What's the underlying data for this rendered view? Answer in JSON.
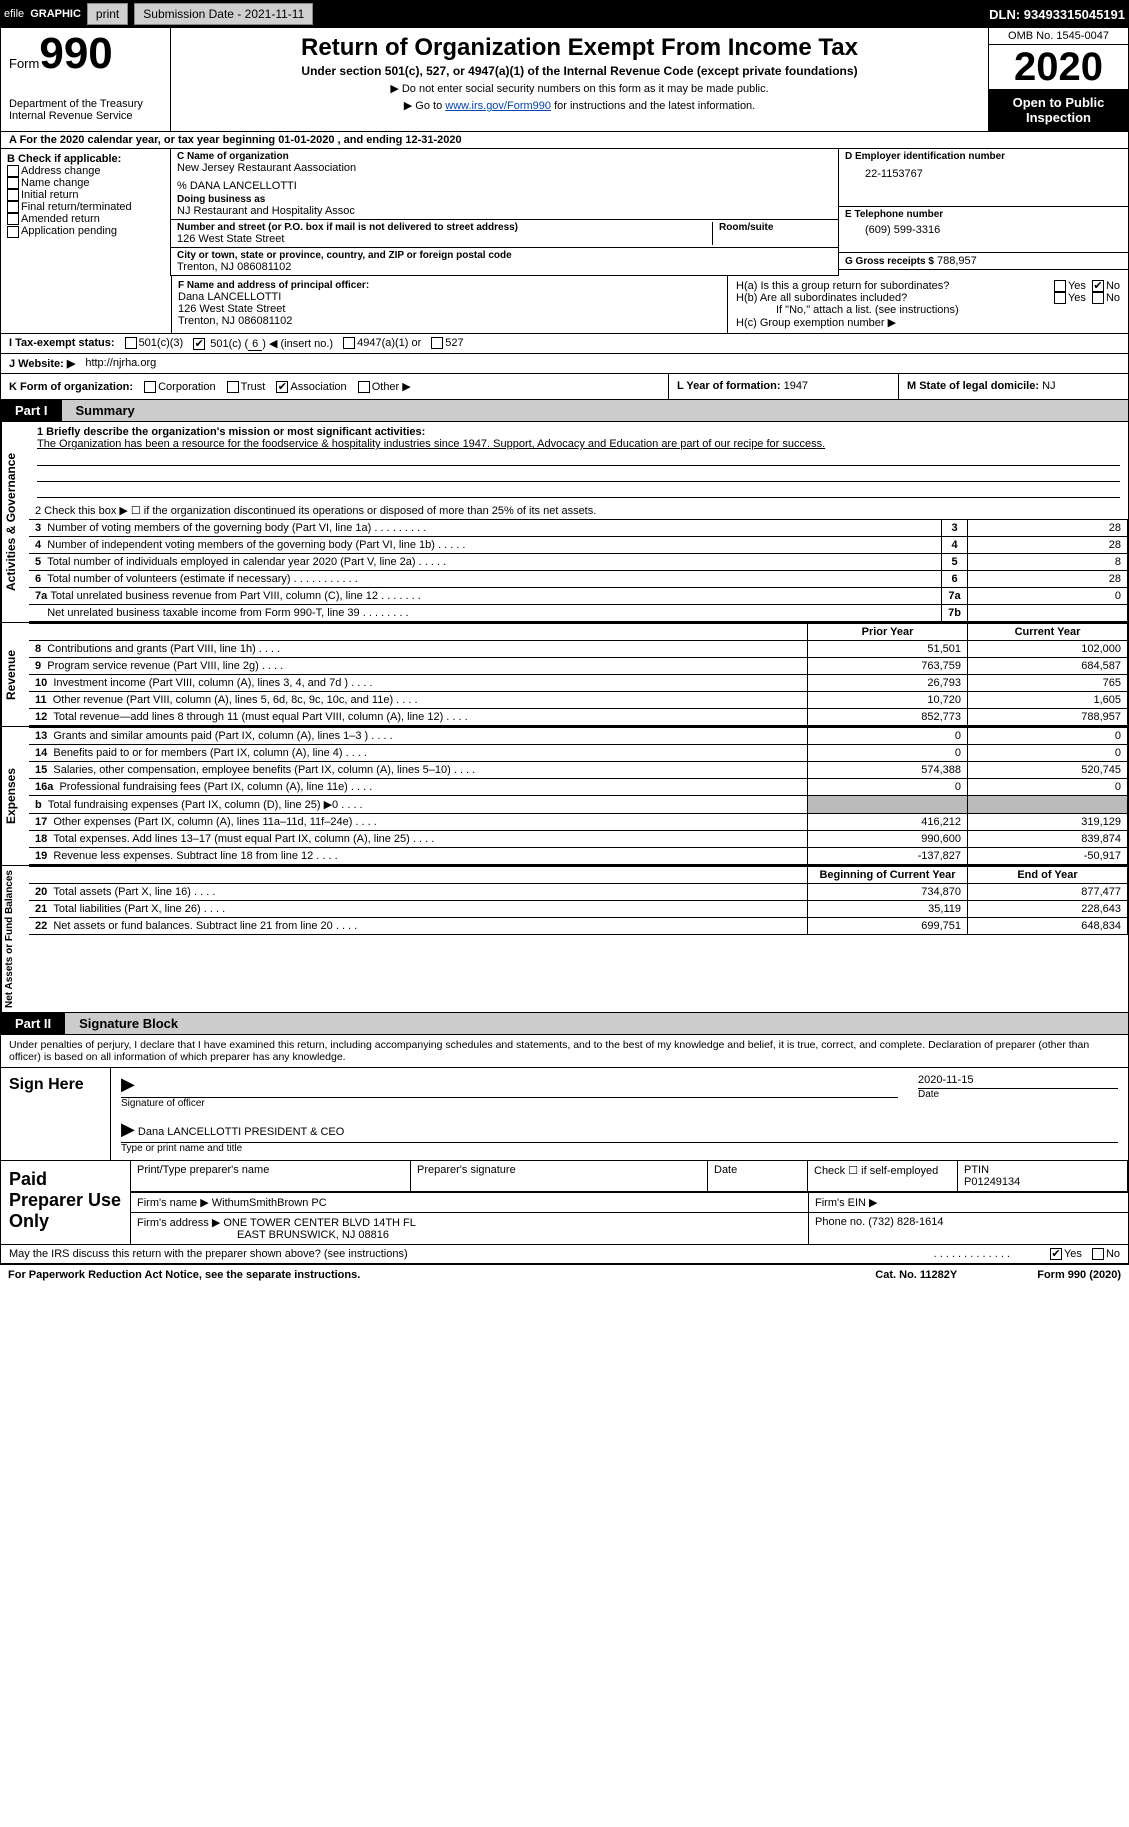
{
  "topbar": {
    "efile": "efile",
    "graphic": "GRAPHIC",
    "print": "print",
    "submission": "Submission Date - 2021-11-11",
    "dln": "DLN: 93493315045191"
  },
  "header": {
    "form_word": "Form",
    "form_num": "990",
    "dept1": "Department of the Treasury",
    "dept2": "Internal Revenue Service",
    "title": "Return of Organization Exempt From Income Tax",
    "subtitle": "Under section 501(c), 527, or 4947(a)(1) of the Internal Revenue Code (except private foundations)",
    "note1": "▶ Do not enter social security numbers on this form as it may be made public.",
    "note2_pre": "▶ Go to ",
    "note2_link": "www.irs.gov/Form990",
    "note2_post": " for instructions and the latest information.",
    "omb": "OMB No. 1545-0047",
    "year": "2020",
    "inspect": "Open to Public Inspection"
  },
  "rowA": "A For the 2020 calendar year, or tax year beginning 01-01-2020   , and ending 12-31-2020",
  "B": {
    "header": "B Check if applicable:",
    "opts": [
      "Address change",
      "Name change",
      "Initial return",
      "Final return/terminated",
      "Amended return",
      "Application pending"
    ]
  },
  "C": {
    "lbl": "C Name of organization",
    "name": "New Jersey Restaurant Aassociation",
    "care": "% DANA LANCELLOTTI",
    "dba_lbl": "Doing business as",
    "dba": "NJ Restaurant and Hospitality Assoc",
    "addr_lbl": "Number and street (or P.O. box if mail is not delivered to street address)",
    "room_lbl": "Room/suite",
    "addr": "126 West State Street",
    "city_lbl": "City or town, state or province, country, and ZIP or foreign postal code",
    "city": "Trenton, NJ  086081102"
  },
  "D": {
    "lbl": "D Employer identification number",
    "val": "22-1153767"
  },
  "E": {
    "lbl": "E Telephone number",
    "val": "(609) 599-3316"
  },
  "G": {
    "lbl": "G Gross receipts $",
    "val": "788,957"
  },
  "F": {
    "lbl": "F  Name and address of principal officer:",
    "name": "Dana LANCELLOTTI",
    "addr": "126 West State Street",
    "city": "Trenton, NJ  086081102"
  },
  "H": {
    "a": "H(a)  Is this a group return for subordinates?",
    "b": "H(b)  Are all subordinates included?",
    "bnote": "If \"No,\" attach a list. (see instructions)",
    "c": "H(c)  Group exemption number ▶",
    "yes": "Yes",
    "no": "No"
  },
  "I": {
    "lbl": "I   Tax-exempt status:",
    "o1": "501(c)(3)",
    "o2_pre": "501(c) (",
    "o2_num": "6",
    "o2_post": ") ◀ (insert no.)",
    "o3": "4947(a)(1) or",
    "o4": "527"
  },
  "J": {
    "lbl": "J   Website: ▶",
    "val": "http://njrha.org"
  },
  "K": {
    "lbl": "K Form of organization:",
    "opts": [
      "Corporation",
      "Trust",
      "Association",
      "Other ▶"
    ],
    "checked_idx": 2
  },
  "L": {
    "lbl": "L Year of formation:",
    "val": "1947"
  },
  "M": {
    "lbl": "M State of legal domicile:",
    "val": "NJ"
  },
  "partI": {
    "tag": "Part I",
    "title": "Summary"
  },
  "sections": {
    "gov": "Activities & Governance",
    "rev": "Revenue",
    "exp": "Expenses",
    "net": "Net Assets or Fund Balances"
  },
  "mission": {
    "lbl": "1  Briefly describe the organization's mission or most significant activities:",
    "text": "The Organization has been a resource for the foodservice & hospitality industries since 1947. Support, Advocacy and Education are part of our recipe for success."
  },
  "gov_lines": {
    "l2": "2   Check this box ▶ ☐  if the organization discontinued its operations or disposed of more than 25% of its net assets.",
    "l3": {
      "t": "Number of voting members of the governing body (Part VI, line 1a)",
      "n": "3",
      "v": "28"
    },
    "l4": {
      "t": "Number of independent voting members of the governing body (Part VI, line 1b)",
      "n": "4",
      "v": "28"
    },
    "l5": {
      "t": "Total number of individuals employed in calendar year 2020 (Part V, line 2a)",
      "n": "5",
      "v": "8"
    },
    "l6": {
      "t": "Total number of volunteers (estimate if necessary)",
      "n": "6",
      "v": "28"
    },
    "l7a": {
      "t": "Total unrelated business revenue from Part VIII, column (C), line 12",
      "n": "7a",
      "v": "0"
    },
    "l7b": {
      "t": "Net unrelated business taxable income from Form 990-T, line 39",
      "n": "7b",
      "v": ""
    }
  },
  "cols": {
    "prior": "Prior Year",
    "current": "Current Year",
    "begin": "Beginning of Current Year",
    "end": "End of Year"
  },
  "rev": [
    {
      "n": "8",
      "t": "Contributions and grants (Part VIII, line 1h)",
      "p": "51,501",
      "c": "102,000"
    },
    {
      "n": "9",
      "t": "Program service revenue (Part VIII, line 2g)",
      "p": "763,759",
      "c": "684,587"
    },
    {
      "n": "10",
      "t": "Investment income (Part VIII, column (A), lines 3, 4, and 7d )",
      "p": "26,793",
      "c": "765"
    },
    {
      "n": "11",
      "t": "Other revenue (Part VIII, column (A), lines 5, 6d, 8c, 9c, 10c, and 11e)",
      "p": "10,720",
      "c": "1,605"
    },
    {
      "n": "12",
      "t": "Total revenue—add lines 8 through 11 (must equal Part VIII, column (A), line 12)",
      "p": "852,773",
      "c": "788,957"
    }
  ],
  "exp": [
    {
      "n": "13",
      "t": "Grants and similar amounts paid (Part IX, column (A), lines 1–3 )",
      "p": "0",
      "c": "0"
    },
    {
      "n": "14",
      "t": "Benefits paid to or for members (Part IX, column (A), line 4)",
      "p": "0",
      "c": "0"
    },
    {
      "n": "15",
      "t": "Salaries, other compensation, employee benefits (Part IX, column (A), lines 5–10)",
      "p": "574,388",
      "c": "520,745"
    },
    {
      "n": "16a",
      "t": "Professional fundraising fees (Part IX, column (A), line 11e)",
      "p": "0",
      "c": "0"
    },
    {
      "n": "b",
      "t": "Total fundraising expenses (Part IX, column (D), line 25) ▶0",
      "p": "",
      "c": "",
      "grey": true
    },
    {
      "n": "17",
      "t": "Other expenses (Part IX, column (A), lines 11a–11d, 11f–24e)",
      "p": "416,212",
      "c": "319,129"
    },
    {
      "n": "18",
      "t": "Total expenses. Add lines 13–17 (must equal Part IX, column (A), line 25)",
      "p": "990,600",
      "c": "839,874"
    },
    {
      "n": "19",
      "t": "Revenue less expenses. Subtract line 18 from line 12",
      "p": "-137,827",
      "c": "-50,917"
    }
  ],
  "net": [
    {
      "n": "20",
      "t": "Total assets (Part X, line 16)",
      "p": "734,870",
      "c": "877,477"
    },
    {
      "n": "21",
      "t": "Total liabilities (Part X, line 26)",
      "p": "35,119",
      "c": "228,643"
    },
    {
      "n": "22",
      "t": "Net assets or fund balances. Subtract line 21 from line 20",
      "p": "699,751",
      "c": "648,834"
    }
  ],
  "partII": {
    "tag": "Part II",
    "title": "Signature Block"
  },
  "sig": {
    "intro": "Under penalties of perjury, I declare that I have examined this return, including accompanying schedules and statements, and to the best of my knowledge and belief, it is true, correct, and complete. Declaration of preparer (other than officer) is based on all information of which preparer has any knowledge.",
    "sign_here": "Sign Here",
    "sig_of_officer": "Signature of officer",
    "date_lbl": "Date",
    "date": "2020-11-15",
    "name_title": "Dana LANCELLOTTI PRESIDENT & CEO",
    "type_lbl": "Type or print name and title"
  },
  "prep": {
    "title": "Paid Preparer Use Only",
    "c1": "Print/Type preparer's name",
    "c2": "Preparer's signature",
    "c3": "Date",
    "c4a": "Check ☐ if self-employed",
    "c5": "PTIN",
    "ptin": "P01249134",
    "firm_name_lbl": "Firm's name    ▶",
    "firm_name": "WithumSmithBrown PC",
    "firm_ein_lbl": "Firm's EIN ▶",
    "firm_addr_lbl": "Firm's address ▶",
    "firm_addr1": "ONE TOWER CENTER BLVD 14TH FL",
    "firm_addr2": "EAST BRUNSWICK, NJ  08816",
    "phone_lbl": "Phone no.",
    "phone": "(732) 828-1614"
  },
  "discuss": "May the IRS discuss this return with the preparer shown above? (see instructions)",
  "footer": {
    "l": "For Paperwork Reduction Act Notice, see the separate instructions.",
    "m": "Cat. No. 11282Y",
    "r": "Form 990 (2020)"
  },
  "colors": {
    "black": "#000000",
    "grey_btn": "#cfcfcf",
    "grey_fill": "#bbbbbb",
    "grey_hdr": "#cccccc",
    "link": "#0645ad"
  }
}
